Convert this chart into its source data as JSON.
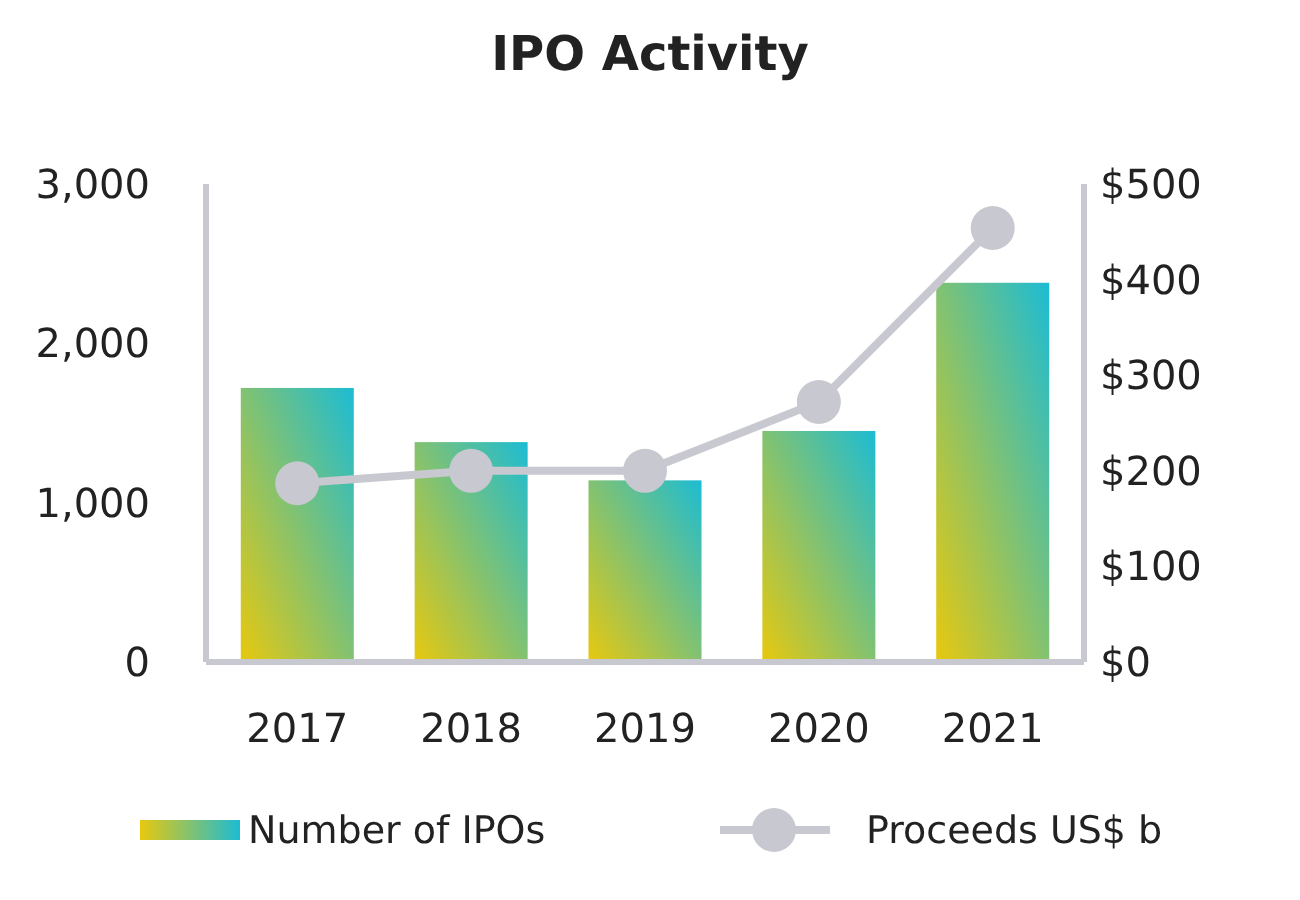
{
  "chart_data": {
    "type": "bar",
    "title": "IPO Activity",
    "categories": [
      "2017",
      "2018",
      "2019",
      "2020",
      "2021"
    ],
    "series": [
      {
        "name": "Number of IPOs",
        "color": "#1cbcd4",
        "values": [
          1720,
          1380,
          1140,
          1450,
          2380
        ]
      },
      {
        "name": "Proceeds US$ b",
        "type": "line",
        "axis": "y2",
        "color": "#c8c8d0",
        "marker": "circle",
        "values": [
          187,
          200,
          200,
          272,
          454
        ]
      }
    ],
    "ylim": [
      0,
      3000
    ],
    "yticks": [
      {
        "value": 0,
        "label": "0"
      },
      {
        "value": 1000,
        "label": "1,000"
      },
      {
        "value": 2000,
        "label": "2,000"
      },
      {
        "value": 3000,
        "label": "3,000"
      }
    ],
    "y2lim": [
      0,
      500
    ],
    "y2ticks": [
      {
        "value": 0,
        "label": "$0"
      },
      {
        "value": 100,
        "label": "$100"
      },
      {
        "value": 200,
        "label": "$200"
      },
      {
        "value": 300,
        "label": "$300"
      },
      {
        "value": 400,
        "label": "$400"
      },
      {
        "value": 500,
        "label": "$500"
      }
    ],
    "grid": false,
    "legend": "bottom"
  }
}
